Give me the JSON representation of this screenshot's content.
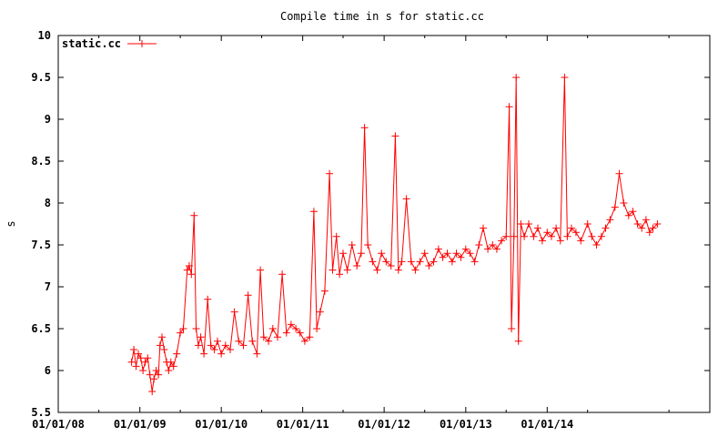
{
  "chart_data": {
    "type": "line",
    "title": "Compile time in s for static.cc",
    "xlabel": "",
    "ylabel": "s",
    "x_axis": "date",
    "xlim": [
      "2008-01-01",
      "2015-12-31"
    ],
    "ylim": [
      5.5,
      10
    ],
    "x_ticks": [
      "01/01/08",
      "01/01/09",
      "01/01/10",
      "01/01/11",
      "01/01/12",
      "01/01/13",
      "01/01/14"
    ],
    "y_ticks": [
      "5.5",
      "6",
      "6.5",
      "7",
      "7.5",
      "8",
      "8.5",
      "9",
      "9.5",
      "10"
    ],
    "grid": false,
    "legend": "top-left",
    "marker": "plus",
    "series": [
      {
        "name": "static.cc",
        "color": "#ff0000",
        "points": [
          [
            "2008-11-25",
            6.1
          ],
          [
            "2008-12-05",
            6.25
          ],
          [
            "2008-12-15",
            6.05
          ],
          [
            "2008-12-25",
            6.2
          ],
          [
            "2009-01-05",
            6.15
          ],
          [
            "2009-01-15",
            6.0
          ],
          [
            "2009-01-25",
            6.1
          ],
          [
            "2009-02-05",
            6.15
          ],
          [
            "2009-02-15",
            5.95
          ],
          [
            "2009-02-25",
            5.75
          ],
          [
            "2009-03-05",
            5.9
          ],
          [
            "2009-03-15",
            6.0
          ],
          [
            "2009-03-25",
            5.95
          ],
          [
            "2009-04-01",
            6.3
          ],
          [
            "2009-04-10",
            6.4
          ],
          [
            "2009-04-20",
            6.25
          ],
          [
            "2009-05-01",
            6.1
          ],
          [
            "2009-05-10",
            6.0
          ],
          [
            "2009-05-20",
            6.1
          ],
          [
            "2009-06-01",
            6.05
          ],
          [
            "2009-06-15",
            6.2
          ],
          [
            "2009-07-01",
            6.45
          ],
          [
            "2009-07-15",
            6.5
          ],
          [
            "2009-08-01",
            7.2
          ],
          [
            "2009-08-10",
            7.25
          ],
          [
            "2009-08-20",
            7.15
          ],
          [
            "2009-09-01",
            7.85
          ],
          [
            "2009-09-10",
            6.5
          ],
          [
            "2009-09-20",
            6.3
          ],
          [
            "2009-10-01",
            6.4
          ],
          [
            "2009-10-15",
            6.2
          ],
          [
            "2009-11-01",
            6.85
          ],
          [
            "2009-11-15",
            6.3
          ],
          [
            "2009-12-01",
            6.25
          ],
          [
            "2009-12-15",
            6.35
          ],
          [
            "2010-01-01",
            6.2
          ],
          [
            "2010-01-20",
            6.3
          ],
          [
            "2010-02-10",
            6.25
          ],
          [
            "2010-03-01",
            6.7
          ],
          [
            "2010-03-20",
            6.35
          ],
          [
            "2010-04-10",
            6.3
          ],
          [
            "2010-05-01",
            6.9
          ],
          [
            "2010-05-20",
            6.35
          ],
          [
            "2010-06-10",
            6.2
          ],
          [
            "2010-06-25",
            7.2
          ],
          [
            "2010-07-10",
            6.4
          ],
          [
            "2010-08-01",
            6.35
          ],
          [
            "2010-08-20",
            6.5
          ],
          [
            "2010-09-10",
            6.4
          ],
          [
            "2010-10-01",
            7.15
          ],
          [
            "2010-10-20",
            6.45
          ],
          [
            "2010-11-10",
            6.55
          ],
          [
            "2010-12-01",
            6.5
          ],
          [
            "2010-12-20",
            6.45
          ],
          [
            "2011-01-10",
            6.35
          ],
          [
            "2011-02-01",
            6.4
          ],
          [
            "2011-02-20",
            7.9
          ],
          [
            "2011-03-05",
            6.5
          ],
          [
            "2011-03-20",
            6.7
          ],
          [
            "2011-04-10",
            6.95
          ],
          [
            "2011-05-01",
            8.35
          ],
          [
            "2011-05-15",
            7.2
          ],
          [
            "2011-06-01",
            7.6
          ],
          [
            "2011-06-15",
            7.15
          ],
          [
            "2011-07-01",
            7.4
          ],
          [
            "2011-07-20",
            7.2
          ],
          [
            "2011-08-10",
            7.5
          ],
          [
            "2011-09-01",
            7.25
          ],
          [
            "2011-09-20",
            7.4
          ],
          [
            "2011-10-05",
            8.9
          ],
          [
            "2011-10-20",
            7.5
          ],
          [
            "2011-11-10",
            7.3
          ],
          [
            "2011-12-01",
            7.2
          ],
          [
            "2011-12-20",
            7.4
          ],
          [
            "2012-01-10",
            7.3
          ],
          [
            "2012-02-01",
            7.25
          ],
          [
            "2012-02-20",
            8.8
          ],
          [
            "2012-03-05",
            7.2
          ],
          [
            "2012-03-20",
            7.3
          ],
          [
            "2012-04-10",
            8.05
          ],
          [
            "2012-05-01",
            7.3
          ],
          [
            "2012-05-20",
            7.2
          ],
          [
            "2012-06-10",
            7.3
          ],
          [
            "2012-07-01",
            7.4
          ],
          [
            "2012-07-20",
            7.25
          ],
          [
            "2012-08-10",
            7.3
          ],
          [
            "2012-09-01",
            7.45
          ],
          [
            "2012-09-20",
            7.35
          ],
          [
            "2012-10-10",
            7.4
          ],
          [
            "2012-11-01",
            7.3
          ],
          [
            "2012-11-20",
            7.4
          ],
          [
            "2012-12-10",
            7.35
          ],
          [
            "2013-01-01",
            7.45
          ],
          [
            "2013-01-20",
            7.4
          ],
          [
            "2013-02-10",
            7.3
          ],
          [
            "2013-03-01",
            7.5
          ],
          [
            "2013-03-20",
            7.7
          ],
          [
            "2013-04-10",
            7.45
          ],
          [
            "2013-05-01",
            7.5
          ],
          [
            "2013-05-20",
            7.45
          ],
          [
            "2013-06-10",
            7.55
          ],
          [
            "2013-07-01",
            7.6
          ],
          [
            "2013-07-15",
            9.15
          ],
          [
            "2013-07-25",
            6.5
          ],
          [
            "2013-08-05",
            7.6
          ],
          [
            "2013-08-15",
            9.5
          ],
          [
            "2013-08-25",
            6.35
          ],
          [
            "2013-09-05",
            7.75
          ],
          [
            "2013-09-20",
            7.6
          ],
          [
            "2013-10-10",
            7.75
          ],
          [
            "2013-11-01",
            7.6
          ],
          [
            "2013-11-20",
            7.7
          ],
          [
            "2013-12-10",
            7.55
          ],
          [
            "2014-01-01",
            7.65
          ],
          [
            "2014-01-20",
            7.6
          ],
          [
            "2014-02-10",
            7.7
          ],
          [
            "2014-03-01",
            7.55
          ],
          [
            "2014-03-20",
            9.5
          ],
          [
            "2014-04-01",
            7.6
          ],
          [
            "2014-04-20",
            7.7
          ],
          [
            "2014-05-10",
            7.65
          ],
          [
            "2014-06-01",
            7.55
          ],
          [
            "2014-07-01",
            7.75
          ],
          [
            "2014-07-20",
            7.6
          ],
          [
            "2014-08-10",
            7.5
          ],
          [
            "2014-09-01",
            7.6
          ],
          [
            "2014-09-20",
            7.7
          ],
          [
            "2014-10-10",
            7.8
          ],
          [
            "2014-11-01",
            7.95
          ],
          [
            "2014-11-20",
            8.35
          ],
          [
            "2014-12-10",
            8.0
          ],
          [
            "2015-01-01",
            7.85
          ],
          [
            "2015-01-20",
            7.9
          ],
          [
            "2015-02-10",
            7.75
          ],
          [
            "2015-03-01",
            7.7
          ],
          [
            "2015-03-20",
            7.8
          ],
          [
            "2015-04-05",
            7.65
          ],
          [
            "2015-04-20",
            7.7
          ],
          [
            "2015-05-10",
            7.75
          ]
        ]
      }
    ]
  }
}
